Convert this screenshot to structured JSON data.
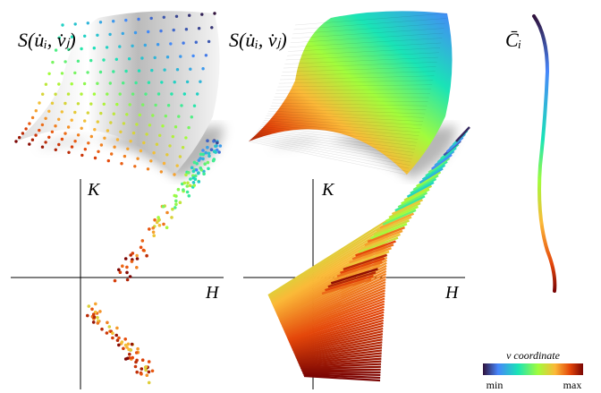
{
  "panels": [
    {
      "label": "S(u̇ᵢ, v̇ⱼ)"
    },
    {
      "label": "S(u̇ᵢ, v̇ⱼ)"
    },
    {
      "label": "C̄ᵢ"
    }
  ],
  "plots": [
    {
      "y_axis": "K",
      "x_axis": "H"
    },
    {
      "y_axis": "K",
      "x_axis": "H"
    }
  ],
  "colorbar": {
    "title": "v coordinate",
    "min_label": "min",
    "max_label": "max"
  }
}
